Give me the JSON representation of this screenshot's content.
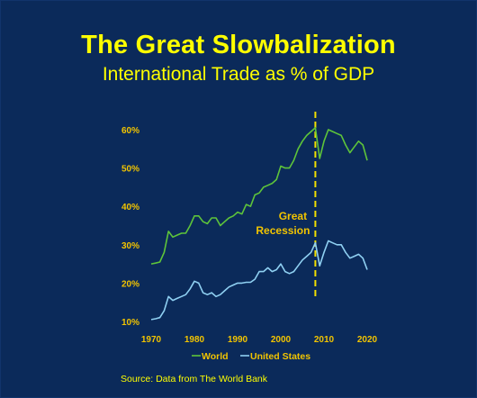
{
  "slide": {
    "title": "The Great Slowbalization",
    "subtitle": "International Trade as % of GDP",
    "source": "Source: Data from The World Bank"
  },
  "chart_data": {
    "type": "line",
    "x": [
      1970,
      1971,
      1972,
      1973,
      1974,
      1975,
      1976,
      1977,
      1978,
      1979,
      1980,
      1981,
      1982,
      1983,
      1984,
      1985,
      1986,
      1987,
      1988,
      1989,
      1990,
      1991,
      1992,
      1993,
      1994,
      1995,
      1996,
      1997,
      1998,
      1999,
      2000,
      2001,
      2002,
      2003,
      2004,
      2005,
      2006,
      2007,
      2008,
      2009,
      2010,
      2011,
      2012,
      2013,
      2014,
      2015,
      2016,
      2017,
      2018,
      2019,
      2020
    ],
    "series": [
      {
        "name": "World",
        "color": "#5ec43a",
        "values": [
          25.0,
          25.2,
          25.5,
          28.0,
          33.5,
          32.0,
          32.5,
          33.0,
          33.0,
          35.0,
          37.5,
          37.5,
          36.0,
          35.5,
          37.0,
          37.0,
          35.0,
          36.0,
          37.0,
          37.5,
          38.5,
          38.0,
          40.5,
          40.0,
          43.0,
          43.5,
          45.0,
          45.5,
          46.0,
          47.0,
          50.5,
          50.0,
          50.0,
          52.0,
          55.0,
          57.0,
          58.5,
          59.5,
          60.5,
          52.5,
          57.0,
          60.0,
          59.5,
          59.0,
          58.5,
          56.0,
          54.0,
          55.5,
          57.0,
          56.0,
          52.0
        ]
      },
      {
        "name": "United States",
        "color": "#8fd0f2",
        "values": [
          10.5,
          10.7,
          11.0,
          12.8,
          16.5,
          15.5,
          16.0,
          16.5,
          17.0,
          18.5,
          20.5,
          20.0,
          17.5,
          17.0,
          17.5,
          16.5,
          17.0,
          18.0,
          19.0,
          19.5,
          20.0,
          20.0,
          20.2,
          20.2,
          21.0,
          23.0,
          23.0,
          24.0,
          23.0,
          23.5,
          25.0,
          23.0,
          22.5,
          23.0,
          24.5,
          26.0,
          27.0,
          28.0,
          30.5,
          24.5,
          28.0,
          31.0,
          30.5,
          30.0,
          30.0,
          28.0,
          26.5,
          27.0,
          27.5,
          26.5,
          23.5
        ]
      }
    ],
    "x_ticks": [
      "1970",
      "1980",
      "1990",
      "2000",
      "2010",
      "2020"
    ],
    "y_ticks": [
      "10%",
      "20%",
      "30%",
      "40%",
      "50%",
      "60%"
    ],
    "xlim": [
      1970,
      2020
    ],
    "ylim": [
      10,
      60
    ],
    "annotation": {
      "line1": "Great",
      "line2": "Recession",
      "x": 2008,
      "line_color": "#f2e000"
    },
    "legend": {
      "placement": "bottom-center",
      "entries": [
        "World",
        "United States"
      ]
    },
    "grid": false,
    "tick_color": "#f2c400"
  }
}
